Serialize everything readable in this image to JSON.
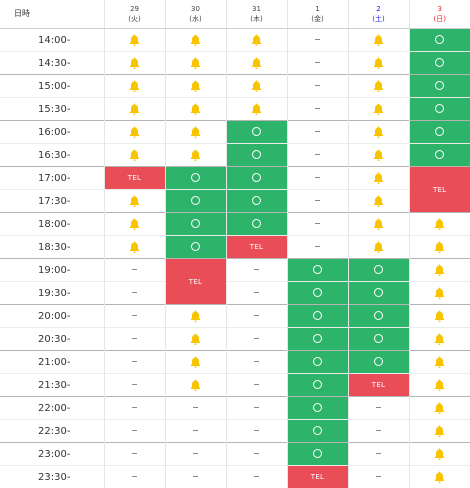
{
  "header": {
    "corner_label": "日時",
    "days": [
      {
        "num": "29",
        "dow": "(火)",
        "kind": "weekday"
      },
      {
        "num": "30",
        "dow": "(水)",
        "kind": "weekday"
      },
      {
        "num": "31",
        "dow": "(木)",
        "kind": "weekday"
      },
      {
        "num": "1",
        "dow": "(金)",
        "kind": "weekday"
      },
      {
        "num": "2",
        "dow": "(土)",
        "kind": "sat"
      },
      {
        "num": "3",
        "dow": "(日)",
        "kind": "sun"
      }
    ]
  },
  "status_icons": {
    "bell": "bell-icon",
    "ok": "circle-icon",
    "none": "dash",
    "tel_label": "TEL"
  },
  "colors": {
    "available": "#2db46a",
    "tel": "#e94d57",
    "bell": "#f8c400",
    "saturday": "#1a1aff",
    "sunday": "#e52222"
  },
  "rows": [
    {
      "time": "14:00-",
      "cells": [
        "bell",
        "bell",
        "bell",
        "none",
        "bell",
        "ok"
      ]
    },
    {
      "time": "14:30-",
      "cells": [
        "bell",
        "bell",
        "bell",
        "none",
        "bell",
        "ok"
      ]
    },
    {
      "time": "15:00-",
      "cells": [
        "bell",
        "bell",
        "bell",
        "none",
        "bell",
        "ok"
      ]
    },
    {
      "time": "15:30-",
      "cells": [
        "bell",
        "bell",
        "bell",
        "none",
        "bell",
        "ok"
      ]
    },
    {
      "time": "16:00-",
      "cells": [
        "bell",
        "bell",
        "ok",
        "none",
        "bell",
        "ok"
      ]
    },
    {
      "time": "16:30-",
      "cells": [
        "bell",
        "bell",
        "ok",
        "none",
        "bell",
        "ok"
      ]
    },
    {
      "time": "17:00-",
      "cells": [
        "tel",
        "ok",
        "ok",
        "none",
        "bell",
        "tel"
      ]
    },
    {
      "time": "17:30-",
      "cells": [
        "bell",
        "ok",
        "ok",
        "none",
        "bell",
        "tel"
      ]
    },
    {
      "time": "18:00-",
      "cells": [
        "bell",
        "ok",
        "ok",
        "none",
        "bell",
        "bell"
      ]
    },
    {
      "time": "18:30-",
      "cells": [
        "bell",
        "ok",
        "tel",
        "none",
        "bell",
        "bell"
      ]
    },
    {
      "time": "19:00-",
      "cells": [
        "none",
        "tel",
        "none",
        "ok",
        "ok",
        "bell"
      ]
    },
    {
      "time": "19:30-",
      "cells": [
        "none",
        "tel",
        "none",
        "ok",
        "ok",
        "bell"
      ]
    },
    {
      "time": "20:00-",
      "cells": [
        "none",
        "bell",
        "none",
        "ok",
        "ok",
        "bell"
      ]
    },
    {
      "time": "20:30-",
      "cells": [
        "none",
        "bell",
        "none",
        "ok",
        "ok",
        "bell"
      ]
    },
    {
      "time": "21:00-",
      "cells": [
        "none",
        "bell",
        "none",
        "ok",
        "ok",
        "bell"
      ]
    },
    {
      "time": "21:30-",
      "cells": [
        "none",
        "bell",
        "none",
        "ok",
        "tel",
        "bell"
      ]
    },
    {
      "time": "22:00-",
      "cells": [
        "none",
        "none",
        "none",
        "ok",
        "none",
        "bell"
      ]
    },
    {
      "time": "22:30-",
      "cells": [
        "none",
        "none",
        "none",
        "ok",
        "none",
        "bell"
      ]
    },
    {
      "time": "23:00-",
      "cells": [
        "none",
        "none",
        "none",
        "ok",
        "none",
        "bell"
      ]
    },
    {
      "time": "23:30-",
      "cells": [
        "none",
        "none",
        "none",
        "tel",
        "none",
        "bell"
      ]
    }
  ]
}
